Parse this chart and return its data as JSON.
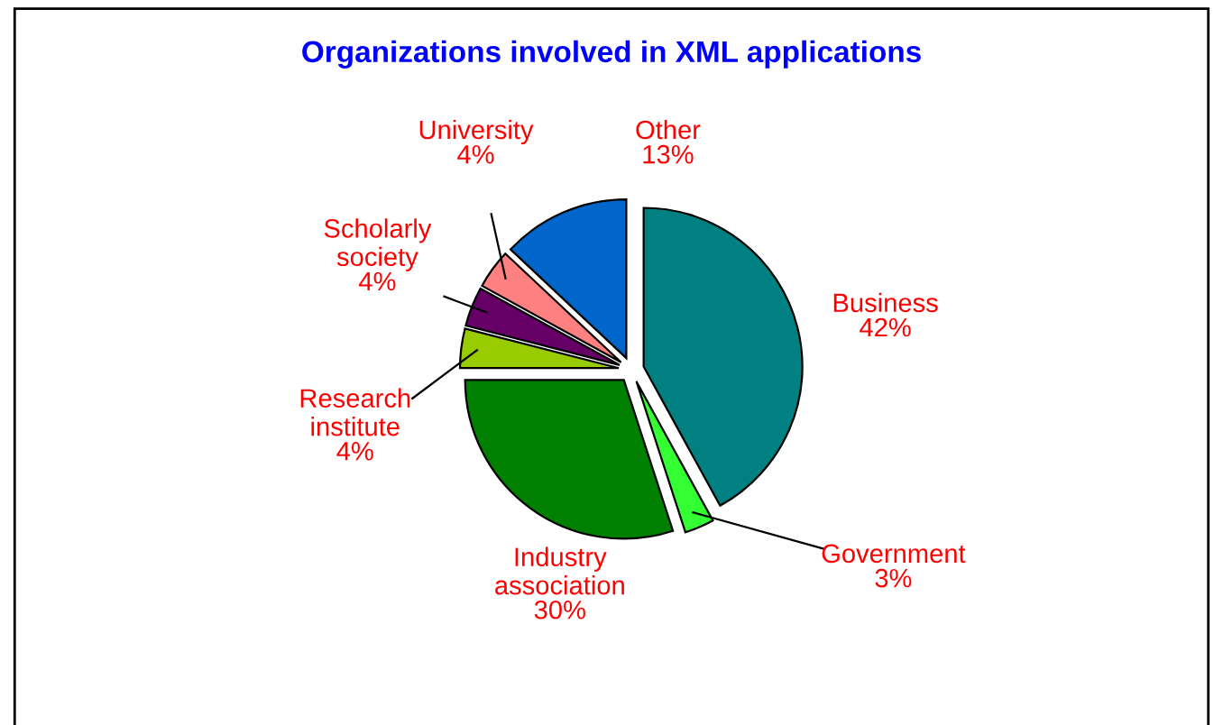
{
  "chart_data": {
    "type": "pie",
    "title": "Organizations involved in XML applications",
    "categories": [
      "Business",
      "Government",
      "Industry association",
      "Research institute",
      "Scholarly society",
      "University",
      "Other"
    ],
    "values": [
      42,
      3,
      30,
      4,
      4,
      4,
      13
    ],
    "value_labels": [
      "42%",
      "3%",
      "30%",
      "4%",
      "4%",
      "4%",
      "13%"
    ],
    "colors": [
      "#008080",
      "#33ff33",
      "#008000",
      "#99cc00",
      "#660066",
      "#ff8080",
      "#0066cc"
    ]
  }
}
